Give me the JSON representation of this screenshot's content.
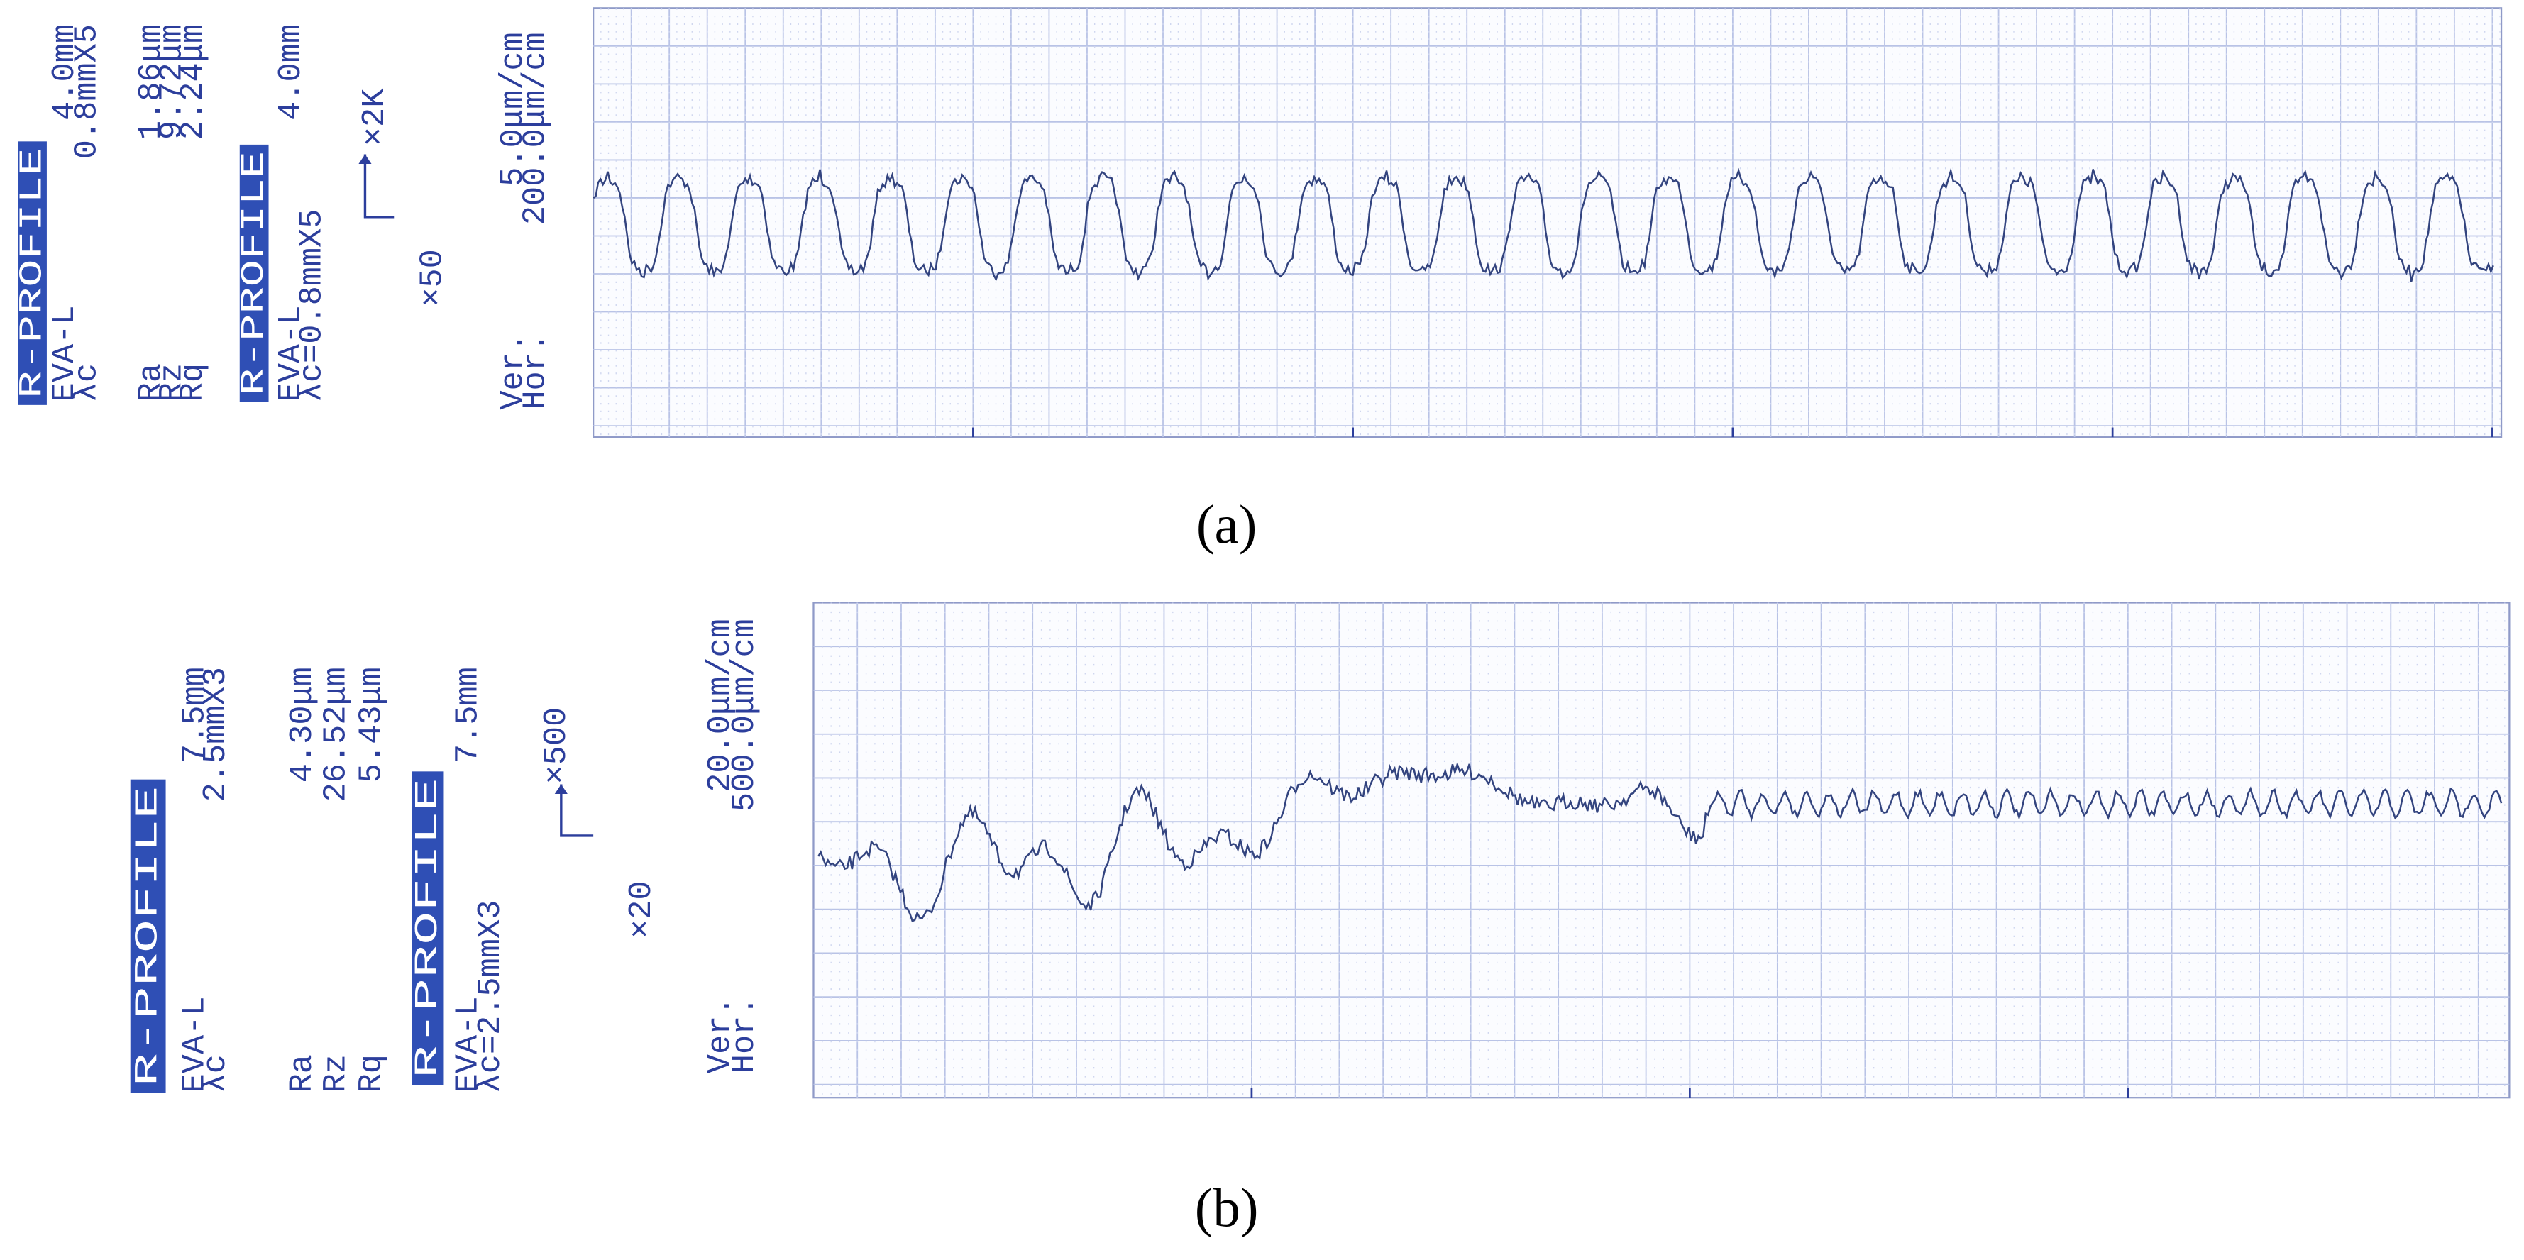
{
  "panels": [
    {
      "label": "(a)",
      "header": "R-PROFILE",
      "eva": "EVA-L",
      "lambda_label": "λc",
      "length": "4.0mm",
      "cutoff": "0.8mmX5",
      "params": [
        {
          "name": "Ra",
          "value": "1.86μm"
        },
        {
          "name": "Rz",
          "value": "9.72μm"
        },
        {
          "name": "Rq",
          "value": "2.24μm"
        }
      ],
      "header2": "R-PROFILE",
      "eva2": "EVA-L",
      "length2": "4.0mm",
      "cutoff2": "λc=0.8mmX5",
      "mag_v": "×2K",
      "mag_h": "×50",
      "scale_labels": [
        "Ver.",
        "Hor."
      ],
      "scale_values": [
        "5.0μm/cm",
        "200.0μm/cm"
      ]
    },
    {
      "label": "(b)",
      "header": "R-PROFILE",
      "eva": "EVA-L",
      "lambda_label": "λc",
      "length": "7.5mm",
      "cutoff": "2.5mmX3",
      "params": [
        {
          "name": "Ra",
          "value": "4.30μm"
        },
        {
          "name": "Rz",
          "value": "26.52μm"
        },
        {
          "name": "Rq",
          "value": "5.43μm"
        }
      ],
      "header2": "R-PROFILE",
      "eva2": "EVA-L",
      "length2": "7.5mm",
      "cutoff2": "λc=2.5mmX3",
      "mag_v": "×500",
      "mag_h": "×20",
      "scale_labels": [
        "Ver.",
        "Hor."
      ],
      "scale_values": [
        "20.0μm/cm",
        "500.0μm/cm"
      ]
    }
  ]
}
